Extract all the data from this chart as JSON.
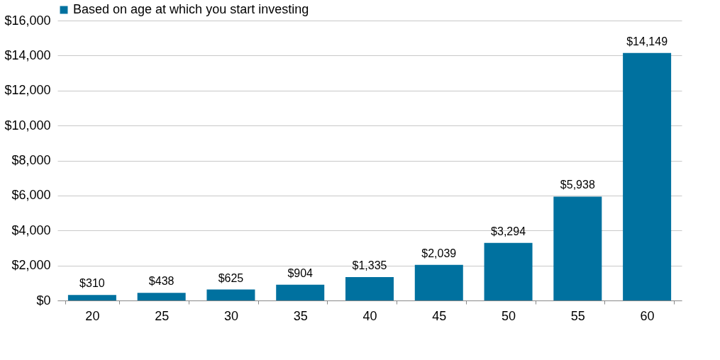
{
  "chart_data": {
    "type": "bar",
    "categories": [
      "20",
      "25",
      "30",
      "35",
      "40",
      "45",
      "50",
      "55",
      "60"
    ],
    "series": [
      {
        "name": "Based on age at which you start investing",
        "color": "#00719f",
        "values": [
          310,
          438,
          625,
          904,
          1335,
          2039,
          3294,
          5938,
          14149
        ],
        "value_labels": [
          "$310",
          "$438",
          "$625",
          "$904",
          "$1,335",
          "$2,039",
          "$3,294",
          "$5,938",
          "$14,149"
        ]
      }
    ],
    "ylim": [
      0,
      16000
    ],
    "yticks": [
      {
        "value": 0,
        "label": "$0"
      },
      {
        "value": 2000,
        "label": "$2,000"
      },
      {
        "value": 4000,
        "label": "$4,000"
      },
      {
        "value": 6000,
        "label": "$6,000"
      },
      {
        "value": 8000,
        "label": "$8,000"
      },
      {
        "value": 10000,
        "label": "$10,000"
      },
      {
        "value": 12000,
        "label": "$12,000"
      },
      {
        "value": 14000,
        "label": "$14,000"
      },
      {
        "value": 16000,
        "label": "$16,000"
      }
    ],
    "grid": "y",
    "legend": "top"
  }
}
